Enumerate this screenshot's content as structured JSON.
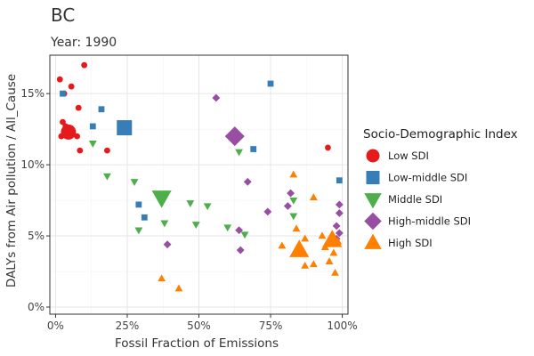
{
  "chart_data": {
    "type": "scatter",
    "title": "BC",
    "subtitle": "Year: 1990",
    "xlabel": "Fossil Fraction of Emissions",
    "ylabel": "DALYs from Air pollution / All_Cause",
    "xlim": [
      -0.02,
      1.02
    ],
    "ylim": [
      -0.005,
      0.177
    ],
    "x_ticks": [
      0,
      0.25,
      0.5,
      0.75,
      1.0
    ],
    "x_tick_labels": [
      "0%",
      "25%",
      "50%",
      "75%",
      "100%"
    ],
    "y_ticks": [
      0,
      0.05,
      0.1,
      0.15
    ],
    "y_tick_labels": [
      "0%",
      "5%",
      "10%",
      "15%"
    ],
    "grid": true,
    "legend": {
      "title": "Socio-Demographic Index",
      "placement": "right"
    },
    "series": [
      {
        "name": "Low SDI",
        "shape": "circle",
        "color": "#E41A1C",
        "points": [
          {
            "x": 0.015,
            "y": 0.16
          },
          {
            "x": 0.03,
            "y": 0.15
          },
          {
            "x": 0.055,
            "y": 0.155
          },
          {
            "x": 0.1,
            "y": 0.17
          },
          {
            "x": 0.08,
            "y": 0.14
          },
          {
            "x": 0.025,
            "y": 0.13
          },
          {
            "x": 0.035,
            "y": 0.127
          },
          {
            "x": 0.02,
            "y": 0.12
          },
          {
            "x": 0.075,
            "y": 0.12
          },
          {
            "x": 0.085,
            "y": 0.11
          },
          {
            "x": 0.18,
            "y": 0.11
          },
          {
            "x": 0.95,
            "y": 0.112
          },
          {
            "x": 0.045,
            "y": 0.123,
            "aggregate": true
          }
        ]
      },
      {
        "name": "Low-middle SDI",
        "shape": "square",
        "color": "#377EB8",
        "points": [
          {
            "x": 0.025,
            "y": 0.15
          },
          {
            "x": 0.16,
            "y": 0.139
          },
          {
            "x": 0.13,
            "y": 0.127
          },
          {
            "x": 0.75,
            "y": 0.157
          },
          {
            "x": 0.69,
            "y": 0.111
          },
          {
            "x": 0.99,
            "y": 0.089
          },
          {
            "x": 0.29,
            "y": 0.072
          },
          {
            "x": 0.31,
            "y": 0.063
          },
          {
            "x": 0.24,
            "y": 0.126,
            "aggregate": true
          }
        ]
      },
      {
        "name": "Middle SDI",
        "shape": "triangle-down",
        "color": "#4DAF4A",
        "points": [
          {
            "x": 0.13,
            "y": 0.115
          },
          {
            "x": 0.18,
            "y": 0.092
          },
          {
            "x": 0.275,
            "y": 0.088
          },
          {
            "x": 0.29,
            "y": 0.054
          },
          {
            "x": 0.38,
            "y": 0.059
          },
          {
            "x": 0.47,
            "y": 0.073
          },
          {
            "x": 0.49,
            "y": 0.058
          },
          {
            "x": 0.53,
            "y": 0.071
          },
          {
            "x": 0.6,
            "y": 0.056
          },
          {
            "x": 0.64,
            "y": 0.109
          },
          {
            "x": 0.66,
            "y": 0.051
          },
          {
            "x": 0.83,
            "y": 0.075
          },
          {
            "x": 0.83,
            "y": 0.064
          },
          {
            "x": 0.37,
            "y": 0.077,
            "aggregate": true
          }
        ]
      },
      {
        "name": "High-middle SDI",
        "shape": "diamond",
        "color": "#984EA3",
        "points": [
          {
            "x": 0.56,
            "y": 0.147
          },
          {
            "x": 0.39,
            "y": 0.044
          },
          {
            "x": 0.64,
            "y": 0.054
          },
          {
            "x": 0.645,
            "y": 0.04
          },
          {
            "x": 0.67,
            "y": 0.088
          },
          {
            "x": 0.74,
            "y": 0.067
          },
          {
            "x": 0.81,
            "y": 0.071
          },
          {
            "x": 0.82,
            "y": 0.08
          },
          {
            "x": 0.99,
            "y": 0.072
          },
          {
            "x": 0.99,
            "y": 0.066
          },
          {
            "x": 0.98,
            "y": 0.057
          },
          {
            "x": 0.99,
            "y": 0.052
          },
          {
            "x": 0.98,
            "y": 0.048
          },
          {
            "x": 0.625,
            "y": 0.12,
            "aggregate": true
          }
        ]
      },
      {
        "name": "High SDI",
        "shape": "triangle-up",
        "color": "#FF7F00",
        "points": [
          {
            "x": 0.37,
            "y": 0.02
          },
          {
            "x": 0.43,
            "y": 0.013
          },
          {
            "x": 0.79,
            "y": 0.043
          },
          {
            "x": 0.83,
            "y": 0.093
          },
          {
            "x": 0.84,
            "y": 0.055
          },
          {
            "x": 0.87,
            "y": 0.048
          },
          {
            "x": 0.87,
            "y": 0.029
          },
          {
            "x": 0.9,
            "y": 0.077
          },
          {
            "x": 0.9,
            "y": 0.03
          },
          {
            "x": 0.93,
            "y": 0.05
          },
          {
            "x": 0.94,
            "y": 0.042
          },
          {
            "x": 0.955,
            "y": 0.032
          },
          {
            "x": 0.97,
            "y": 0.038
          },
          {
            "x": 0.975,
            "y": 0.024
          },
          {
            "x": 0.985,
            "y": 0.046
          },
          {
            "x": 0.85,
            "y": 0.04,
            "aggregate": true
          },
          {
            "x": 0.965,
            "y": 0.047,
            "aggregate": true
          }
        ]
      }
    ]
  }
}
